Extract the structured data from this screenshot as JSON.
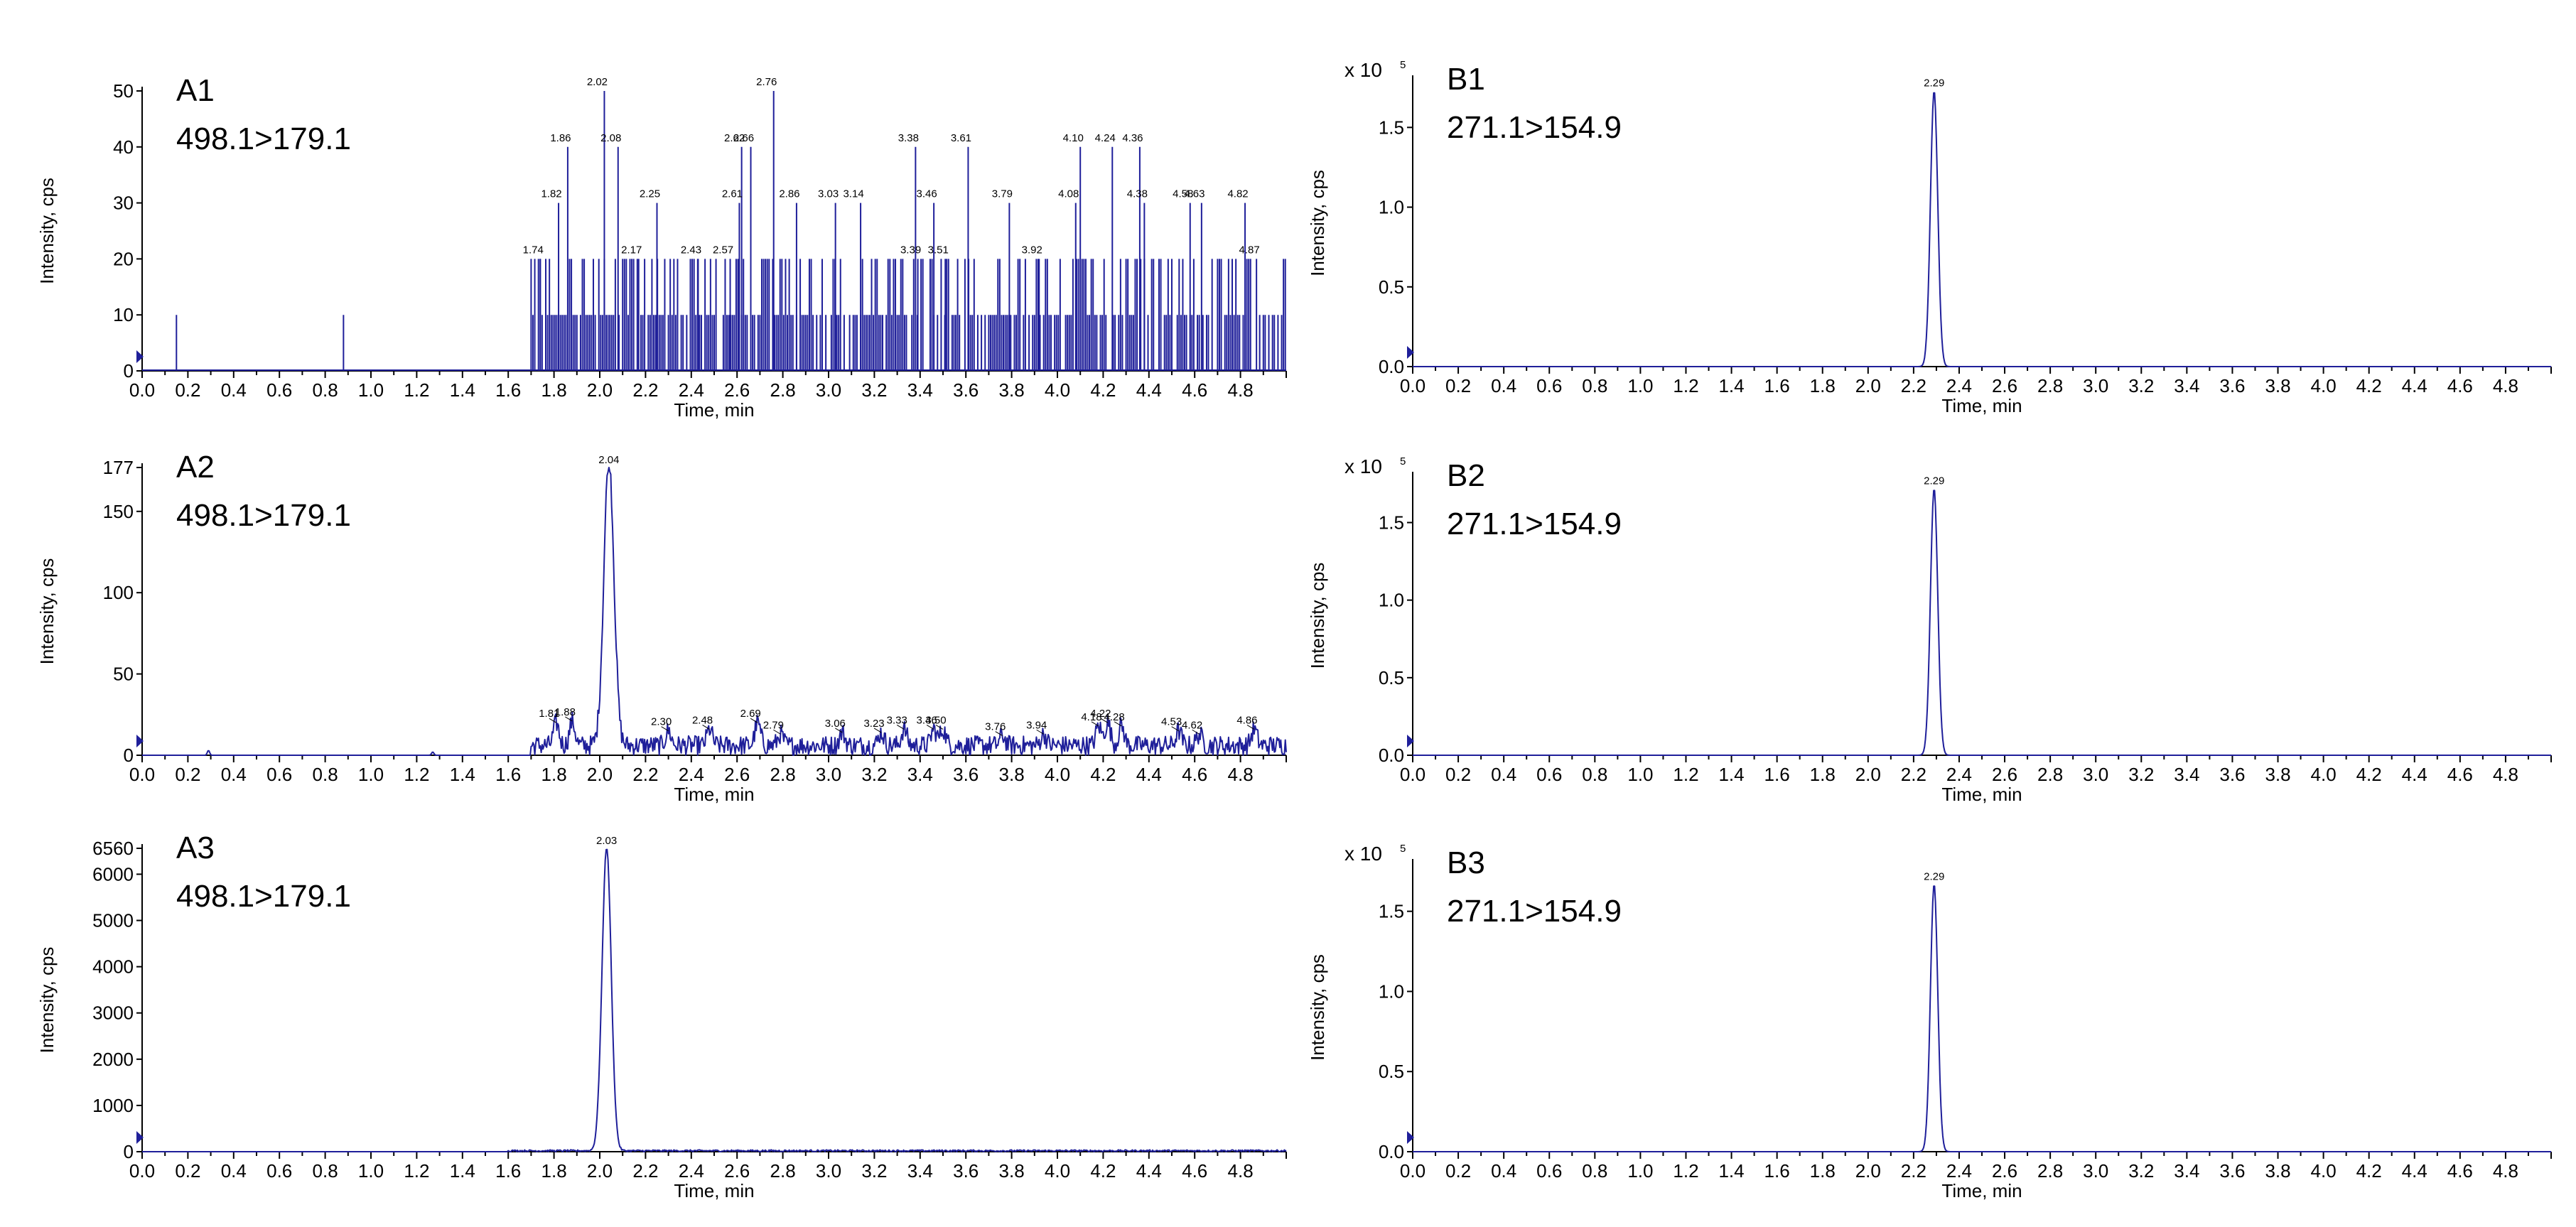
{
  "chart_data": [
    {
      "id": "A1",
      "type": "line",
      "title": "A1",
      "subtitle": "498.1>179.1",
      "xlabel": "Time, min",
      "ylabel": "Intensity, cps",
      "xlim": [
        0,
        5
      ],
      "ylim": [
        0,
        50
      ],
      "xticks": [
        "0.0",
        "0.2",
        "0.4",
        "0.6",
        "0.8",
        "1.0",
        "1.2",
        "1.4",
        "1.6",
        "1.8",
        "2.0",
        "2.2",
        "2.4",
        "2.6",
        "2.8",
        "3.0",
        "3.2",
        "3.4",
        "3.6",
        "3.8",
        "4.0",
        "4.2",
        "4.4",
        "4.6",
        "4.8"
      ],
      "yticks": [
        "0",
        "10",
        "20",
        "30",
        "40",
        "50"
      ],
      "multiplier": "",
      "trace_style": "noise",
      "peaks": [
        {
          "x": 1.74,
          "y": 20,
          "label": "1.74"
        },
        {
          "x": 1.82,
          "y": 30,
          "label": "1.82"
        },
        {
          "x": 1.86,
          "y": 40,
          "label": "1.86"
        },
        {
          "x": 2.02,
          "y": 50,
          "label": "2.02"
        },
        {
          "x": 2.08,
          "y": 40,
          "label": "2.08"
        },
        {
          "x": 2.17,
          "y": 20,
          "label": "2.17"
        },
        {
          "x": 2.25,
          "y": 30,
          "label": "2.25"
        },
        {
          "x": 2.43,
          "y": 20,
          "label": "2.43"
        },
        {
          "x": 2.57,
          "y": 20,
          "label": "2.57"
        },
        {
          "x": 2.61,
          "y": 30,
          "label": "2.61"
        },
        {
          "x": 2.62,
          "y": 40,
          "label": "2.62"
        },
        {
          "x": 2.66,
          "y": 40,
          "label": "2.66"
        },
        {
          "x": 2.76,
          "y": 50,
          "label": "2.76"
        },
        {
          "x": 2.86,
          "y": 30,
          "label": "2.86"
        },
        {
          "x": 3.03,
          "y": 30,
          "label": "3.03"
        },
        {
          "x": 3.14,
          "y": 30,
          "label": "3.14"
        },
        {
          "x": 3.38,
          "y": 40,
          "label": "3.38"
        },
        {
          "x": 3.39,
          "y": 20,
          "label": "3.39"
        },
        {
          "x": 3.46,
          "y": 30,
          "label": "3.46"
        },
        {
          "x": 3.51,
          "y": 20,
          "label": "3.51"
        },
        {
          "x": 3.61,
          "y": 40,
          "label": "3.61"
        },
        {
          "x": 3.79,
          "y": 30,
          "label": "3.79"
        },
        {
          "x": 3.92,
          "y": 20,
          "label": "3.92"
        },
        {
          "x": 4.08,
          "y": 30,
          "label": "4.08"
        },
        {
          "x": 4.1,
          "y": 40,
          "label": "4.10"
        },
        {
          "x": 4.24,
          "y": 40,
          "label": "4.24"
        },
        {
          "x": 4.36,
          "y": 40,
          "label": "4.36"
        },
        {
          "x": 4.38,
          "y": 30,
          "label": "4.38"
        },
        {
          "x": 4.58,
          "y": 30,
          "label": "4.58"
        },
        {
          "x": 4.63,
          "y": 30,
          "label": "4.63"
        },
        {
          "x": 4.82,
          "y": 30,
          "label": "4.82"
        },
        {
          "x": 4.87,
          "y": 20,
          "label": "4.87"
        }
      ],
      "spikes": [
        {
          "x": 0.15,
          "y": 10
        },
        {
          "x": 0.88,
          "y": 10
        }
      ],
      "noise_range": [
        1.7,
        5.0
      ],
      "noise_max": 20
    },
    {
      "id": "A2",
      "type": "line",
      "title": "A2",
      "subtitle": "498.1>179.1",
      "xlabel": "Time, min",
      "ylabel": "Intensity, cps",
      "xlim": [
        0,
        5
      ],
      "ylim": [
        0,
        177
      ],
      "xticks": [
        "0.0",
        "0.2",
        "0.4",
        "0.6",
        "0.8",
        "1.0",
        "1.2",
        "1.4",
        "1.6",
        "1.8",
        "2.0",
        "2.2",
        "2.4",
        "2.6",
        "2.8",
        "3.0",
        "3.2",
        "3.4",
        "3.6",
        "3.8",
        "4.0",
        "4.2",
        "4.4",
        "4.6",
        "4.8"
      ],
      "yticks": [
        "0",
        "50",
        "100",
        "150",
        "177"
      ],
      "multiplier": "",
      "trace_style": "smooth",
      "main_peak": {
        "x": 2.04,
        "y": 177,
        "width": 0.022,
        "label": "2.04"
      },
      "peaks": [
        {
          "x": 1.81,
          "y": 20,
          "label": "1.81"
        },
        {
          "x": 1.88,
          "y": 21,
          "label": "1.88"
        },
        {
          "x": 2.3,
          "y": 15,
          "label": "2.30"
        },
        {
          "x": 2.48,
          "y": 16,
          "label": "2.48"
        },
        {
          "x": 2.69,
          "y": 20,
          "label": "2.69"
        },
        {
          "x": 2.79,
          "y": 13,
          "label": "2.79"
        },
        {
          "x": 3.06,
          "y": 14,
          "label": "3.06"
        },
        {
          "x": 3.23,
          "y": 14,
          "label": "3.23"
        },
        {
          "x": 3.33,
          "y": 16,
          "label": "3.33"
        },
        {
          "x": 3.46,
          "y": 16,
          "label": "3.46"
        },
        {
          "x": 3.5,
          "y": 16,
          "label": "3.50"
        },
        {
          "x": 3.76,
          "y": 12,
          "label": "3.76"
        },
        {
          "x": 3.94,
          "y": 13,
          "label": "3.94"
        },
        {
          "x": 4.18,
          "y": 18,
          "label": "4.18"
        },
        {
          "x": 4.22,
          "y": 20,
          "label": "4.22"
        },
        {
          "x": 4.28,
          "y": 18,
          "label": "4.28"
        },
        {
          "x": 4.53,
          "y": 15,
          "label": "4.53"
        },
        {
          "x": 4.62,
          "y": 13,
          "label": "4.62"
        },
        {
          "x": 4.86,
          "y": 16,
          "label": "4.86"
        }
      ],
      "spikes": [
        {
          "x": 0.29,
          "y": 3
        },
        {
          "x": 1.27,
          "y": 2
        }
      ],
      "noise_range": [
        1.7,
        5.0
      ],
      "noise_max": 12
    },
    {
      "id": "A3",
      "type": "line",
      "title": "A3",
      "subtitle": "498.1>179.1",
      "xlabel": "Time, min",
      "ylabel": "Intensity, cps",
      "xlim": [
        0,
        5
      ],
      "ylim": [
        0,
        6560
      ],
      "xticks": [
        "0.0",
        "0.2",
        "0.4",
        "0.6",
        "0.8",
        "1.0",
        "1.2",
        "1.4",
        "1.6",
        "1.8",
        "2.0",
        "2.2",
        "2.4",
        "2.6",
        "2.8",
        "3.0",
        "3.2",
        "3.4",
        "3.6",
        "3.8",
        "4.0",
        "4.2",
        "4.4",
        "4.6",
        "4.8"
      ],
      "yticks": [
        "0",
        "1000",
        "2000",
        "3000",
        "4000",
        "5000",
        "6000",
        "6560"
      ],
      "multiplier": "",
      "trace_style": "smooth",
      "main_peak": {
        "x": 2.03,
        "y": 6560,
        "width": 0.02,
        "label": "2.03"
      },
      "peaks": [],
      "spikes": [],
      "noise_range": [
        1.6,
        5.0
      ],
      "noise_max": 40
    },
    {
      "id": "B1",
      "type": "line",
      "title": "B1",
      "subtitle": "271.1>154.9",
      "xlabel": "Time, min",
      "ylabel": "Intensity, cps",
      "xlim": [
        0,
        5
      ],
      "ylim": [
        0,
        1.8
      ],
      "xticks": [
        "0.0",
        "0.2",
        "0.4",
        "0.6",
        "0.8",
        "1.0",
        "1.2",
        "1.4",
        "1.6",
        "1.8",
        "2.0",
        "2.2",
        "2.4",
        "2.6",
        "2.8",
        "3.0",
        "3.2",
        "3.4",
        "3.6",
        "3.8",
        "4.0",
        "4.2",
        "4.4",
        "4.6",
        "4.8"
      ],
      "yticks": [
        "0.0",
        "0.5",
        "1.0",
        "1.5"
      ],
      "multiplier": "x 10",
      "multiplier_exp": "5",
      "trace_style": "smooth",
      "main_peak": {
        "x": 2.29,
        "y": 1.73,
        "width": 0.016,
        "label": "2.29"
      },
      "peaks": [],
      "spikes": [],
      "noise_range": [
        0,
        0
      ],
      "noise_max": 0
    },
    {
      "id": "B2",
      "type": "line",
      "title": "B2",
      "subtitle": "271.1>154.9",
      "xlabel": "Time, min",
      "ylabel": "Intensity, cps",
      "xlim": [
        0,
        5
      ],
      "ylim": [
        0,
        1.8
      ],
      "xticks": [
        "0.0",
        "0.2",
        "0.4",
        "0.6",
        "0.8",
        "1.0",
        "1.2",
        "1.4",
        "1.6",
        "1.8",
        "2.0",
        "2.2",
        "2.4",
        "2.6",
        "2.8",
        "3.0",
        "3.2",
        "3.4",
        "3.6",
        "3.8",
        "4.0",
        "4.2",
        "4.4",
        "4.6",
        "4.8"
      ],
      "yticks": [
        "0.0",
        "0.5",
        "1.0",
        "1.5"
      ],
      "multiplier": "x 10",
      "multiplier_exp": "5",
      "trace_style": "smooth",
      "main_peak": {
        "x": 2.29,
        "y": 1.72,
        "width": 0.016,
        "label": "2.29"
      },
      "peaks": [],
      "spikes": [],
      "noise_range": [
        0,
        0
      ],
      "noise_max": 0
    },
    {
      "id": "B3",
      "type": "line",
      "title": "B3",
      "subtitle": "271.1>154.9",
      "xlabel": "Time, min",
      "ylabel": "Intensity, cps",
      "xlim": [
        0,
        5
      ],
      "ylim": [
        0,
        1.8
      ],
      "xticks": [
        "0.0",
        "0.2",
        "0.4",
        "0.6",
        "0.8",
        "1.0",
        "1.2",
        "1.4",
        "1.6",
        "1.8",
        "2.0",
        "2.2",
        "2.4",
        "2.6",
        "2.8",
        "3.0",
        "3.2",
        "3.4",
        "3.6",
        "3.8",
        "4.0",
        "4.2",
        "4.4",
        "4.6",
        "4.8"
      ],
      "yticks": [
        "0.0",
        "0.5",
        "1.0",
        "1.5"
      ],
      "multiplier": "x 10",
      "multiplier_exp": "5",
      "trace_style": "smooth",
      "main_peak": {
        "x": 2.29,
        "y": 1.67,
        "width": 0.016,
        "label": "2.29"
      },
      "peaks": [],
      "spikes": [],
      "noise_range": [
        0,
        0
      ],
      "noise_max": 0
    }
  ],
  "colors": {
    "trace": "#1f1f9a",
    "axis": "#000000",
    "background": "#ffffff"
  }
}
